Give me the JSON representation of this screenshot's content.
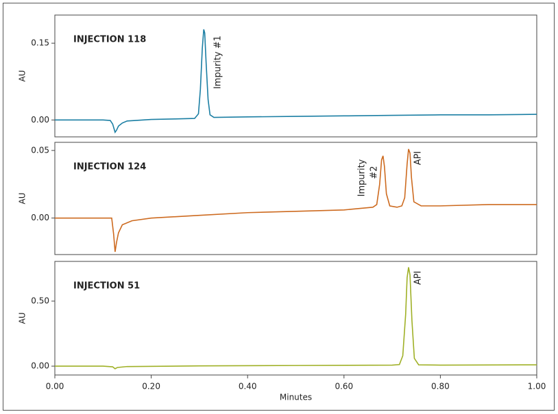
{
  "chart_data": [
    {
      "type": "line",
      "title": "INJECTION 118",
      "ylabel": "AU",
      "color": "#1a7ea3",
      "annotations": [
        "Impurity #1"
      ],
      "xlim": [
        0,
        1
      ],
      "ylim": [
        -0.033,
        0.205
      ],
      "yticks": [
        {
          "value": 0,
          "label": "0.00"
        },
        0.15
      ],
      "x": [
        0,
        0.05,
        0.1,
        0.115,
        0.12,
        0.125,
        0.128,
        0.132,
        0.14,
        0.15,
        0.2,
        0.25,
        0.29,
        0.298,
        0.302,
        0.306,
        0.309,
        0.311,
        0.314,
        0.318,
        0.322,
        0.33,
        0.4,
        0.5,
        0.6,
        0.7,
        0.8,
        0.9,
        1.0
      ],
      "values": [
        0,
        0,
        0,
        -0.001,
        -0.008,
        -0.024,
        -0.02,
        -0.012,
        -0.006,
        -0.002,
        0.001,
        0.002,
        0.003,
        0.012,
        0.06,
        0.14,
        0.177,
        0.17,
        0.11,
        0.04,
        0.01,
        0.005,
        0.006,
        0.007,
        0.008,
        0.009,
        0.01,
        0.01,
        0.011
      ]
    },
    {
      "type": "line",
      "title": "INJECTION 124",
      "ylabel": "AU",
      "color": "#cd6a1f",
      "annotations": [
        "Impurity",
        "#2",
        "API"
      ],
      "xlim": [
        0,
        1
      ],
      "ylim": [
        -0.027,
        0.056
      ],
      "yticks": [
        {
          "value": 0,
          "label": "0.00"
        },
        0.05
      ],
      "x": [
        0,
        0.05,
        0.1,
        0.118,
        0.122,
        0.125,
        0.128,
        0.132,
        0.14,
        0.16,
        0.2,
        0.3,
        0.4,
        0.5,
        0.6,
        0.66,
        0.668,
        0.674,
        0.678,
        0.681,
        0.684,
        0.688,
        0.695,
        0.71,
        0.72,
        0.726,
        0.731,
        0.734,
        0.737,
        0.74,
        0.745,
        0.76,
        0.8,
        0.9,
        1.0
      ],
      "values": [
        0,
        0,
        0,
        0,
        -0.012,
        -0.025,
        -0.018,
        -0.011,
        -0.005,
        -0.002,
        0,
        0.002,
        0.004,
        0.005,
        0.006,
        0.008,
        0.01,
        0.025,
        0.043,
        0.046,
        0.038,
        0.018,
        0.009,
        0.008,
        0.009,
        0.015,
        0.04,
        0.051,
        0.048,
        0.03,
        0.012,
        0.009,
        0.009,
        0.01,
        0.01
      ]
    },
    {
      "type": "line",
      "title": "INJECTION 51",
      "ylabel": "AU",
      "xlabel": "Minutes",
      "color": "#9fb025",
      "annotations": [
        "API"
      ],
      "xlim": [
        0,
        1
      ],
      "ylim": [
        -0.068,
        0.805
      ],
      "xticks": [
        {
          "value": 0,
          "label": "0.00"
        },
        {
          "value": 0.2,
          "label": "0.20"
        },
        {
          "value": 0.4,
          "label": "0.40"
        },
        {
          "value": 0.6,
          "label": "0.60"
        },
        {
          "value": 0.8,
          "label": "0.80"
        },
        {
          "value": 1,
          "label": "1.00"
        }
      ],
      "yticks": [
        {
          "value": 0,
          "label": "0.00"
        },
        {
          "value": 0.5,
          "label": "0.50"
        }
      ],
      "x": [
        0,
        0.1,
        0.12,
        0.125,
        0.13,
        0.15,
        0.3,
        0.5,
        0.7,
        0.715,
        0.722,
        0.728,
        0.731,
        0.734,
        0.737,
        0.741,
        0.746,
        0.755,
        0.8,
        1.0
      ],
      "values": [
        0,
        0,
        -0.005,
        -0.02,
        -0.01,
        -0.003,
        0.002,
        0.005,
        0.008,
        0.012,
        0.08,
        0.4,
        0.68,
        0.76,
        0.7,
        0.35,
        0.06,
        0.01,
        0.008,
        0.01
      ]
    }
  ]
}
